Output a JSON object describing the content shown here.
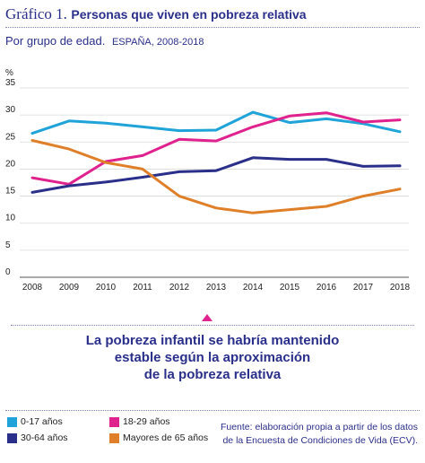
{
  "header": {
    "title_prefix": "Gráfico 1.",
    "title": "Personas que viven en pobreza relativa",
    "subtitle": "Por grupo de edad.",
    "subtitle_meta": "ESPAÑA, 2008-2018"
  },
  "callout": {
    "lines": [
      "La pobreza infantil se habría mantenido",
      "estable según la aproximación",
      "de la pobreza relativa"
    ],
    "marker_color": "#e0228e"
  },
  "source": {
    "lines": [
      "Fuente: elaboración propia a partir de los datos",
      "de la Encuesta de Condiciones de Vida (ECV)."
    ]
  },
  "chart_data": {
    "type": "line",
    "title": "Personas que viven en pobreza relativa",
    "ylabel": "%",
    "xlabel": "",
    "x": [
      "2008",
      "2009",
      "2010",
      "2011",
      "2012",
      "2013",
      "2014",
      "2015",
      "2016",
      "2017",
      "2018"
    ],
    "ylim": [
      0,
      35
    ],
    "yticks": [
      0,
      5,
      10,
      15,
      20,
      25,
      30,
      35
    ],
    "grid": "horizontal",
    "legend": "bottom-left",
    "series": [
      {
        "name": "0-17 años",
        "color": "#1fa3d8",
        "values": [
          26.6,
          28.9,
          28.5,
          27.8,
          27.1,
          27.2,
          30.5,
          28.6,
          29.3,
          28.4,
          26.9
        ]
      },
      {
        "name": "18-29 años",
        "color": "#e0228e",
        "values": [
          18.4,
          17.2,
          21.4,
          22.5,
          25.5,
          25.2,
          27.8,
          29.8,
          30.4,
          28.7,
          29.1
        ]
      },
      {
        "name": "30-64 años",
        "color": "#2a2f8a",
        "values": [
          15.7,
          16.9,
          17.6,
          18.5,
          19.5,
          19.7,
          22.1,
          21.8,
          21.8,
          20.5,
          20.6
        ]
      },
      {
        "name": "Mayores de 65 años",
        "color": "#e07f2a",
        "values": [
          25.3,
          23.7,
          21.2,
          20.0,
          15.0,
          12.8,
          11.9,
          12.5,
          13.1,
          15.0,
          16.3
        ]
      }
    ]
  }
}
